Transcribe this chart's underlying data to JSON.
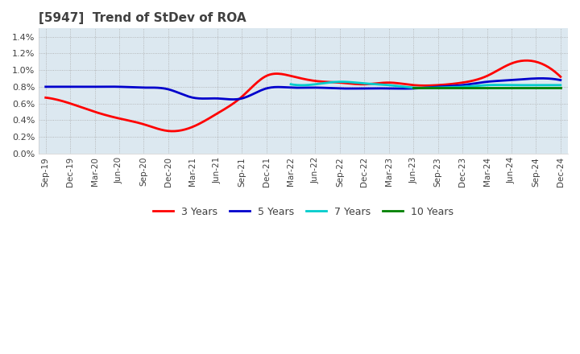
{
  "title": "[5947]  Trend of StDev of ROA",
  "title_color": "#404040",
  "background_color": "#ffffff",
  "plot_background_color": "#dce8f0",
  "grid_color": "#aaaaaa",
  "ylim": [
    0.0,
    0.015
  ],
  "yticks": [
    0.0,
    0.002,
    0.004,
    0.006,
    0.008,
    0.01,
    0.012,
    0.014
  ],
  "ytick_labels": [
    "0.0%",
    "0.2%",
    "0.4%",
    "0.6%",
    "0.8%",
    "1.0%",
    "1.2%",
    "1.4%"
  ],
  "x_labels": [
    "Sep-19",
    "Dec-19",
    "Mar-20",
    "Jun-20",
    "Sep-20",
    "Dec-20",
    "Mar-21",
    "Jun-21",
    "Sep-21",
    "Dec-21",
    "Mar-22",
    "Jun-22",
    "Sep-22",
    "Dec-22",
    "Mar-23",
    "Jun-23",
    "Sep-23",
    "Dec-23",
    "Mar-24",
    "Jun-24",
    "Sep-24",
    "Dec-24"
  ],
  "series": {
    "3 Years": {
      "color": "#ff0000",
      "linewidth": 2.0,
      "values": [
        0.0067,
        0.006,
        0.005,
        0.0042,
        0.0035,
        0.0027,
        0.0032,
        0.0048,
        0.0068,
        0.0093,
        0.0093,
        0.0087,
        0.0085,
        0.0083,
        0.0085,
        0.0082,
        0.0082,
        0.0085,
        0.0093,
        0.0108,
        0.011,
        0.0092
      ]
    },
    "5 Years": {
      "color": "#0000cc",
      "linewidth": 2.0,
      "values": [
        0.008,
        0.008,
        0.008,
        0.008,
        0.0079,
        0.0077,
        0.0067,
        0.0066,
        0.0066,
        0.0078,
        0.0079,
        0.0079,
        0.0078,
        0.0078,
        0.0078,
        0.0078,
        0.008,
        0.0082,
        0.0086,
        0.0088,
        0.009,
        0.0088
      ]
    },
    "7 Years": {
      "color": "#00cccc",
      "linewidth": 2.0,
      "values": [
        null,
        null,
        null,
        null,
        null,
        null,
        null,
        null,
        null,
        null,
        0.0083,
        0.0083,
        0.0086,
        0.0084,
        0.0082,
        0.0079,
        0.0079,
        0.008,
        0.0082,
        0.0082,
        0.0082,
        0.0082
      ]
    },
    "10 Years": {
      "color": "#008000",
      "linewidth": 2.0,
      "values": [
        null,
        null,
        null,
        null,
        null,
        null,
        null,
        null,
        null,
        null,
        null,
        null,
        null,
        null,
        null,
        0.0079,
        0.0079,
        0.0079,
        0.0079,
        0.0079,
        0.0079,
        0.0079
      ]
    }
  },
  "legend_ncol": 4,
  "figsize": [
    7.2,
    4.4
  ],
  "dpi": 100
}
